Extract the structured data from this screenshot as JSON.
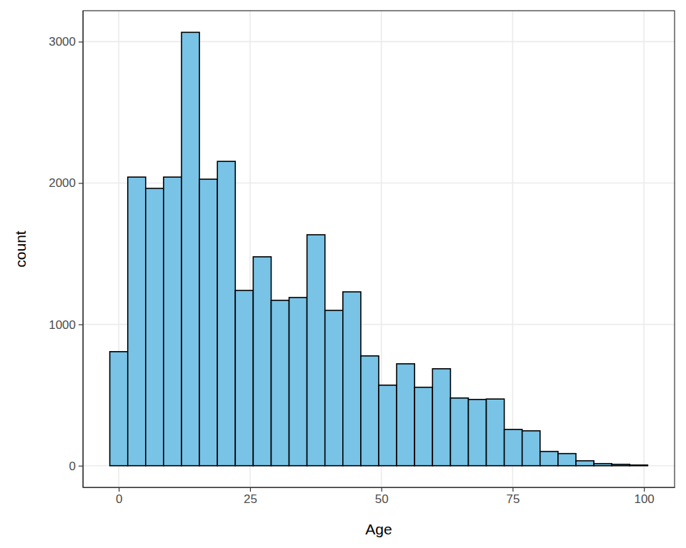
{
  "chart_data": {
    "type": "histogram",
    "x_label": "Age",
    "y_label": "count",
    "bins": [
      -1.71,
      1.71,
      5.12,
      8.53,
      11.95,
      15.36,
      18.78,
      22.19,
      25.6,
      29.02,
      32.43,
      35.84,
      39.26,
      42.67,
      46.09,
      49.5,
      52.91,
      56.33,
      59.74,
      63.16,
      66.57,
      69.98,
      73.4,
      76.81,
      80.22,
      83.64,
      87.05,
      90.47,
      93.88,
      97.29,
      100.71
    ],
    "values": [
      807,
      2042,
      1962,
      2042,
      3066,
      2027,
      2153,
      1240,
      1478,
      1170,
      1190,
      1634,
      1099,
      1230,
      777,
      570,
      721,
      555,
      686,
      479,
      469,
      472,
      257,
      247,
      101,
      86,
      35,
      15,
      10,
      5
    ],
    "color": "#78c3e6",
    "xlim": [
      -6.83,
      105.83
    ],
    "xticks": [
      0,
      25,
      50,
      75,
      100
    ],
    "ylim": [
      -153,
      3219
    ],
    "yticks": [
      0,
      1000,
      2000,
      3000
    ],
    "grid": true
  }
}
